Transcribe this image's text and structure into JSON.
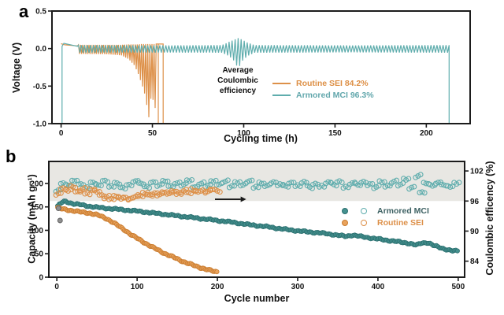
{
  "figure": {
    "panel_a_letter": "a",
    "panel_b_letter": "b"
  },
  "colors": {
    "axis": "#1b1b1b",
    "orange_line": "#dd9049",
    "teal_line": "#5fadad",
    "orange_marker": "#e9a35c",
    "orange_edge": "#c97c30",
    "teal_marker": "#45918f",
    "teal_edge": "#2b6f6f",
    "gray_marker": "#8f8f8f",
    "gray_edge": "#606060",
    "band": "#e8e7e3",
    "legend_a_orange_text": "#dd8f45",
    "legend_a_teal_text": "#62a7ac",
    "legend_b_teal_text": "#3d6163",
    "legend_b_orange_text": "#dd9049",
    "annotation_text": "#111111",
    "arrow": "#1a1a1a"
  },
  "panel_a": {
    "ylabel": "Voltage (V)",
    "xlabel": "Cycling time (h)",
    "annotation": [
      "Average",
      "Coulombic",
      "efficiency"
    ],
    "legend": [
      {
        "label": "Routine SEI 84.2%"
      },
      {
        "label": "Armored MCI 96.3%"
      }
    ]
  },
  "panel_b": {
    "ylabel_left": "Capacity (mAh g⁻¹)",
    "ylabel_right": "Coulombic efficency (%)",
    "xlabel": "Cycle number",
    "legend": [
      {
        "label": "Armored  MCI"
      },
      {
        "label": "Routine SEI"
      }
    ]
  },
  "chart_data": [
    {
      "type": "line",
      "panel": "a",
      "xlabel": "Cycling time (h)",
      "ylabel": "Voltage (V)",
      "xlim": [
        -5,
        224
      ],
      "ylim": [
        -1.0,
        0.5
      ],
      "xticks": [
        0,
        50,
        100,
        150,
        200
      ],
      "yticks": [
        0.5,
        0.0,
        -0.5,
        -1.0
      ],
      "ytick_labels": [
        "0.5",
        "0.0",
        "-0.5",
        "-1.0"
      ],
      "series": [
        {
          "name": "Routine SEI",
          "average_coulombic_efficiency": "84.2%",
          "color_key": "orange_line",
          "flat": [
            [
              0,
              0.065
            ],
            [
              2,
              0.05
            ],
            [
              9,
              0.035
            ]
          ],
          "osc": {
            "t0": 9.5,
            "t1": 52.5,
            "period": 1.15,
            "env": [
              [
                9.5,
                -0.07,
                0.05
              ],
              [
                25,
                -0.075,
                0.05
              ],
              [
                33,
                -0.09,
                0.05
              ],
              [
                37,
                -0.14,
                0.055
              ],
              [
                40,
                -0.22,
                0.055
              ],
              [
                42,
                -0.32,
                0.055
              ],
              [
                44,
                -0.46,
                0.06
              ],
              [
                46,
                -0.62,
                0.06
              ],
              [
                48,
                -0.92,
                0.06
              ],
              [
                49.5,
                -0.6,
                0.06
              ],
              [
                51,
                -0.75,
                0.06
              ],
              [
                52.5,
                -0.88,
                0.06
              ]
            ]
          },
          "fail_drops": [
            53.2,
            55.9
          ]
        },
        {
          "name": "Armored MCI",
          "average_coulombic_efficiency": "96.3%",
          "color_key": "teal_line",
          "init_rise": {
            "t": 0.5,
            "from": -1.0,
            "to": 0.03
          },
          "flat": [
            [
              0.5,
              0.03
            ],
            [
              1.5,
              0.07
            ],
            [
              9,
              0.03
            ]
          ],
          "osc": {
            "t0": 9.5,
            "t1": 212.3,
            "period": 1.65,
            "env": [
              [
                9.5,
                -0.055,
                0.045
              ],
              [
                60,
                -0.052,
                0.042
              ],
              [
                88,
                -0.055,
                0.045
              ],
              [
                92,
                -0.1,
                0.09
              ],
              [
                95,
                -0.17,
                0.12
              ],
              [
                97,
                -0.27,
                0.14
              ],
              [
                99,
                -0.17,
                0.12
              ],
              [
                102,
                -0.1,
                0.08
              ],
              [
                106,
                -0.055,
                0.045
              ],
              [
                160,
                -0.05,
                0.042
              ],
              [
                212.3,
                -0.055,
                0.045
              ]
            ]
          },
          "end_drop": {
            "t": 212.5,
            "to": -1.0
          }
        }
      ]
    },
    {
      "type": "scatter",
      "panel": "b",
      "xlabel": "Cycle number",
      "ylabel_left": "Capacity (mAh g⁻¹)",
      "ylabel_right": "Coulombic efficency (%)",
      "xlim": [
        -10,
        508
      ],
      "ylim_left": [
        0,
        247
      ],
      "ylim_right": [
        80.8,
        103.9
      ],
      "xticks": [
        0,
        100,
        200,
        300,
        400,
        500
      ],
      "yticks_left": [
        0,
        50,
        100,
        150,
        200
      ],
      "yticks_right": [
        102,
        96,
        90,
        84
      ],
      "ce_band": {
        "from": 96,
        "color_key": "band"
      },
      "arrow": {
        "x1": 197,
        "x2": 229,
        "y": 96.35
      },
      "series": [
        {
          "name": "Armored MCI capacity",
          "axis": "left",
          "marker": "filled",
          "fill_key": "teal_marker",
          "edge_key": "teal_edge",
          "step": 2.0,
          "anchors": [
            [
              1,
              151
            ],
            [
              3,
              155
            ],
            [
              6,
              159
            ],
            [
              10,
              162
            ],
            [
              14,
              160
            ],
            [
              20,
              157
            ],
            [
              28,
              155
            ],
            [
              38,
              152
            ],
            [
              50,
              149
            ],
            [
              62,
              147
            ],
            [
              75,
              145
            ],
            [
              88,
              143
            ],
            [
              100,
              141
            ],
            [
              115,
              138
            ],
            [
              130,
              135
            ],
            [
              145,
              132
            ],
            [
              160,
              129
            ],
            [
              175,
              126
            ],
            [
              190,
              123
            ],
            [
              205,
              120
            ],
            [
              220,
              117
            ],
            [
              235,
              113
            ],
            [
              250,
              110
            ],
            [
              265,
              107
            ],
            [
              280,
              103
            ],
            [
              295,
              100
            ],
            [
              310,
              97
            ],
            [
              325,
              95
            ],
            [
              340,
              92
            ],
            [
              352,
              89
            ],
            [
              360,
              87
            ],
            [
              368,
              90
            ],
            [
              378,
              87
            ],
            [
              390,
              84
            ],
            [
              402,
              81
            ],
            [
              415,
              78
            ],
            [
              428,
              75
            ],
            [
              440,
              72
            ],
            [
              448,
              68
            ],
            [
              454,
              73
            ],
            [
              462,
              74
            ],
            [
              470,
              67
            ],
            [
              478,
              63
            ],
            [
              486,
              59
            ],
            [
              493,
              56
            ],
            [
              500,
              56
            ]
          ]
        },
        {
          "name": "Routine SEI capacity",
          "axis": "left",
          "marker": "filled",
          "fill_key": "orange_marker",
          "edge_key": "orange_edge",
          "step": 1.6,
          "anchors": [
            [
              1,
              148
            ],
            [
              5,
              146
            ],
            [
              12,
              144
            ],
            [
              20,
              142
            ],
            [
              30,
              139
            ],
            [
              40,
              137
            ],
            [
              48,
              134
            ],
            [
              55,
              130
            ],
            [
              62,
              125
            ],
            [
              70,
              117
            ],
            [
              78,
              108
            ],
            [
              86,
              99
            ],
            [
              94,
              89
            ],
            [
              102,
              81
            ],
            [
              110,
              73
            ],
            [
              118,
              65
            ],
            [
              126,
              58
            ],
            [
              134,
              51
            ],
            [
              142,
              45
            ],
            [
              150,
              39
            ],
            [
              158,
              33
            ],
            [
              166,
              28
            ],
            [
              174,
              23
            ],
            [
              182,
              19
            ],
            [
              190,
              15
            ],
            [
              196,
              12
            ],
            [
              200,
              11
            ]
          ]
        },
        {
          "name": "first-cycle points",
          "axis": "left",
          "marker": "filled",
          "fill_key": "gray_marker",
          "edge_key": "gray_edge",
          "points": [
            [
              2,
              147
            ],
            [
              4,
              121
            ]
          ]
        },
        {
          "name": "Armored MCI coulombic efficiency",
          "axis": "right",
          "marker": "open",
          "edge_key": "teal_line",
          "points": [
            [
              2,
              98.2
            ],
            [
              8,
              99.6
            ],
            [
              15,
              99.1
            ],
            [
              22,
              100.0
            ],
            [
              30,
              99.4
            ],
            [
              38,
              98.8
            ],
            [
              45,
              99.7
            ],
            [
              52,
              99.2
            ],
            [
              60,
              100.1
            ],
            [
              68,
              99.0
            ],
            [
              75,
              99.6
            ],
            [
              82,
              98.7
            ],
            [
              90,
              99.3
            ],
            [
              98,
              100.0
            ],
            [
              105,
              99.5
            ],
            [
              112,
              98.9
            ],
            [
              120,
              99.8
            ],
            [
              128,
              99.2
            ],
            [
              135,
              99.9
            ],
            [
              142,
              99.0
            ],
            [
              150,
              99.6
            ],
            [
              158,
              99.3
            ],
            [
              165,
              100.0
            ],
            [
              172,
              98.8
            ],
            [
              180,
              99.5
            ],
            [
              188,
              99.1
            ],
            [
              195,
              99.8
            ],
            [
              202,
              99.3
            ],
            [
              210,
              99.9
            ],
            [
              218,
              99.0
            ],
            [
              225,
              99.6
            ],
            [
              232,
              99.2
            ],
            [
              240,
              100.0
            ],
            [
              248,
              98.9
            ],
            [
              255,
              99.5
            ],
            [
              262,
              99.1
            ],
            [
              270,
              99.8
            ],
            [
              278,
              99.4
            ],
            [
              285,
              99.0
            ],
            [
              292,
              99.7
            ],
            [
              300,
              99.2
            ],
            [
              308,
              99.9
            ],
            [
              315,
              98.8
            ],
            [
              322,
              99.5
            ],
            [
              330,
              99.1
            ],
            [
              338,
              99.8
            ],
            [
              345,
              99.3
            ],
            [
              352,
              100.0
            ],
            [
              360,
              98.9
            ],
            [
              368,
              99.6
            ],
            [
              375,
              99.2
            ],
            [
              382,
              99.9
            ],
            [
              390,
              99.4
            ],
            [
              398,
              98.8
            ],
            [
              405,
              99.7
            ],
            [
              412,
              99.1
            ],
            [
              420,
              99.9
            ],
            [
              428,
              99.3
            ],
            [
              435,
              100.2
            ],
            [
              442,
              98.7
            ],
            [
              450,
              101.0
            ],
            [
              455,
              97.8
            ],
            [
              460,
              99.5
            ],
            [
              468,
              99.0
            ],
            [
              475,
              99.7
            ],
            [
              482,
              99.2
            ],
            [
              490,
              98.8
            ],
            [
              498,
              99.4
            ]
          ]
        },
        {
          "name": "Routine SEI coulombic efficiency",
          "axis": "right",
          "marker": "open",
          "edge_key": "orange_line",
          "points": [
            [
              2,
              97.5
            ],
            [
              8,
              98.6
            ],
            [
              14,
              98.0
            ],
            [
              20,
              98.8
            ],
            [
              26,
              97.9
            ],
            [
              32,
              98.4
            ],
            [
              38,
              97.6
            ],
            [
              44,
              98.2
            ],
            [
              50,
              97.8
            ],
            [
              56,
              97.2
            ],
            [
              62,
              96.8
            ],
            [
              68,
              96.5
            ],
            [
              74,
              96.9
            ],
            [
              80,
              96.4
            ],
            [
              86,
              96.7
            ],
            [
              92,
              96.5
            ],
            [
              98,
              96.9
            ],
            [
              104,
              97.1
            ],
            [
              110,
              97.4
            ],
            [
              116,
              97.2
            ],
            [
              122,
              97.6
            ],
            [
              128,
              97.3
            ],
            [
              134,
              97.7
            ],
            [
              140,
              97.5
            ],
            [
              146,
              97.9
            ],
            [
              152,
              97.6
            ],
            [
              158,
              98.0
            ],
            [
              164,
              97.7
            ],
            [
              170,
              98.1
            ],
            [
              176,
              97.8
            ],
            [
              182,
              98.2
            ],
            [
              188,
              97.9
            ],
            [
              194,
              98.3
            ],
            [
              200,
              98.0
            ]
          ]
        }
      ]
    }
  ]
}
